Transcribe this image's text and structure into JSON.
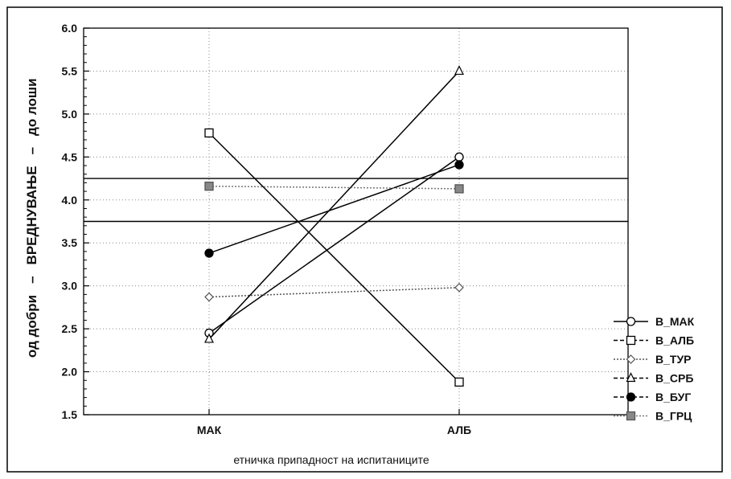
{
  "chart_data": {
    "type": "line",
    "categories": [
      "МАК",
      "АЛБ"
    ],
    "xlabel": "етничка припадност на испитаниците",
    "ylabel": {
      "part1": "од добри",
      "dash1": "–",
      "part2": "ВРЕДНУВАЊЕ",
      "dash2": "–",
      "part3": "до лоши"
    },
    "ylim": [
      1.5,
      6.0
    ],
    "yticks": [
      "1.5",
      "2.0",
      "2.5",
      "3.0",
      "3.5",
      "4.0",
      "4.5",
      "5.0",
      "5.5",
      "6.0"
    ],
    "grid": true,
    "legend_position": "right",
    "reference_lines": [
      4.25,
      3.75
    ],
    "series": [
      {
        "name": "В_МАК",
        "values": [
          2.45,
          4.5
        ],
        "marker": "circle-open",
        "line": "solid",
        "color": "#000000"
      },
      {
        "name": "В_АЛБ",
        "values": [
          4.78,
          1.88
        ],
        "marker": "square-open",
        "line": "solid",
        "color": "#000000"
      },
      {
        "name": "В_ТУР",
        "values": [
          2.87,
          2.98
        ],
        "marker": "diamond-open",
        "line": "dotted",
        "color": "#555555"
      },
      {
        "name": "В_СРБ",
        "values": [
          2.38,
          5.5
        ],
        "marker": "triangle-open",
        "line": "solid",
        "color": "#000000"
      },
      {
        "name": "В_БУГ",
        "values": [
          3.38,
          4.41
        ],
        "marker": "circle-filled",
        "line": "solid",
        "color": "#000000"
      },
      {
        "name": "В_ГРЦ",
        "values": [
          4.16,
          4.13
        ],
        "marker": "square-hatched",
        "line": "dotted",
        "color": "#777777"
      }
    ]
  }
}
